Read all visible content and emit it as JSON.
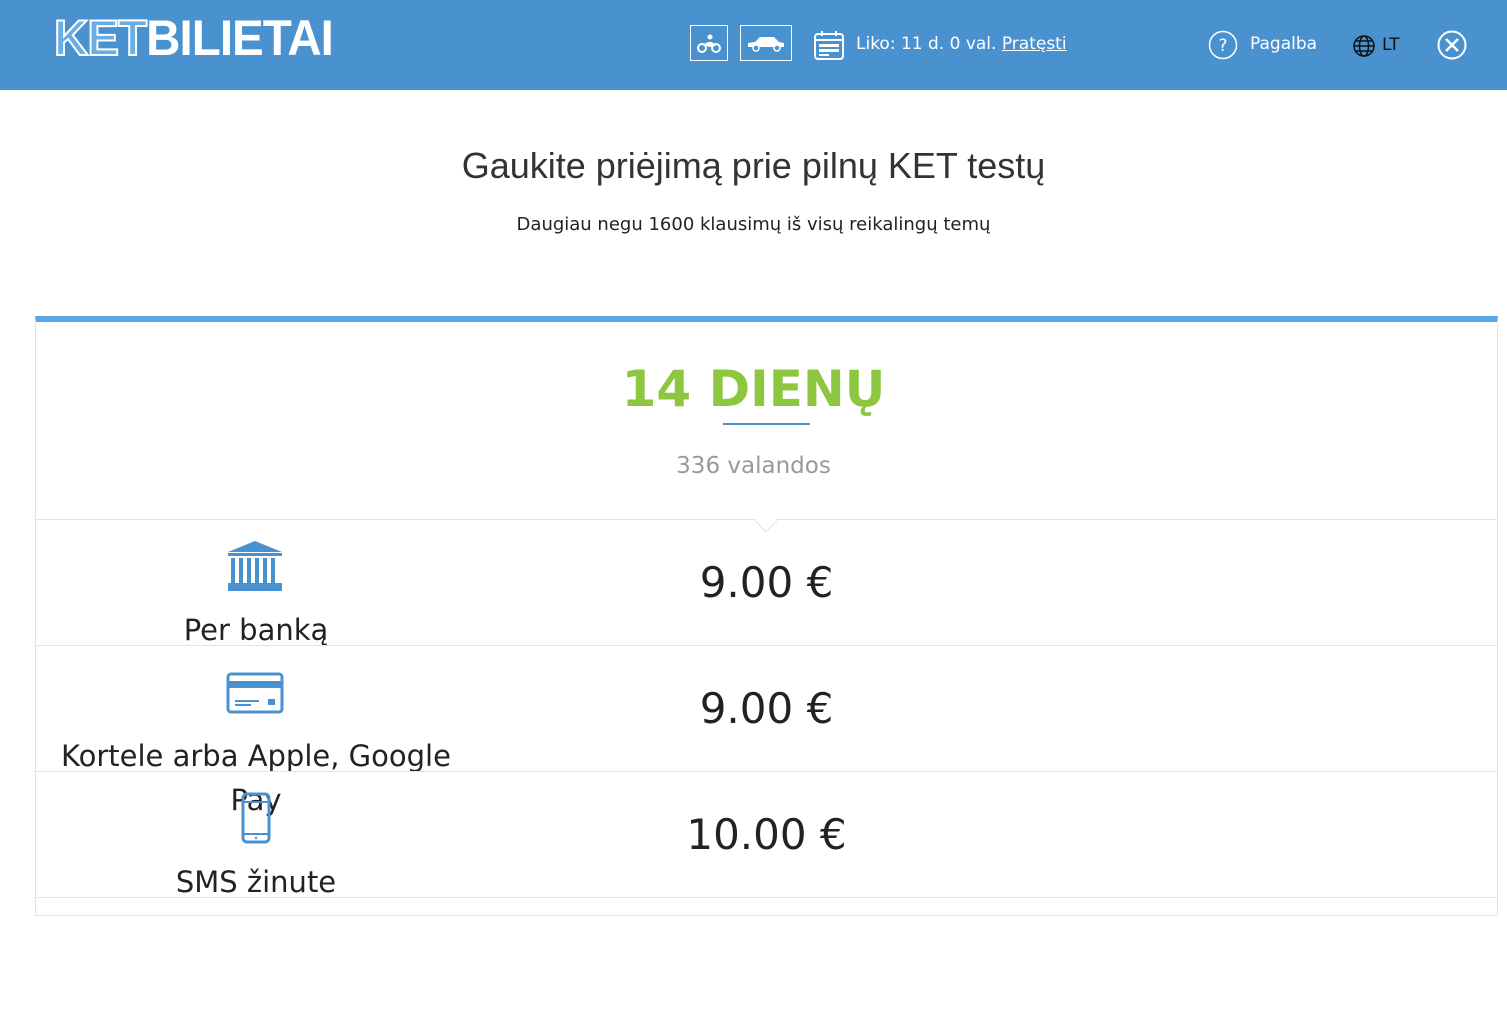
{
  "header": {
    "logo_outline": "KET",
    "logo_solid": "BILIETAI",
    "remaining": "Liko: 11 d. 0 val.",
    "extend_link": "Pratęsti",
    "help": "Pagalba",
    "language": "LT",
    "icons": [
      "motorcycle-icon",
      "car-icon",
      "calendar-icon",
      "help-icon",
      "globe-icon",
      "close-icon"
    ]
  },
  "page": {
    "title": "Gaukite priėjimą prie pilnų KET testų",
    "subtitle": "Daugiau negu 1600 klausimų iš visų reikalingų temų"
  },
  "plan": {
    "name": "14 DIENŲ",
    "hours": "336 valandos",
    "accent": "#8dc63f"
  },
  "payments": [
    {
      "label": "Per banką",
      "price": "9.00 €",
      "icon": "bank-icon"
    },
    {
      "label": "Kortele arba Apple, Google Pay",
      "price": "9.00 €",
      "icon": "credit-card-icon"
    },
    {
      "label": "SMS žinute",
      "price": "10.00 €",
      "icon": "smartphone-icon"
    }
  ]
}
